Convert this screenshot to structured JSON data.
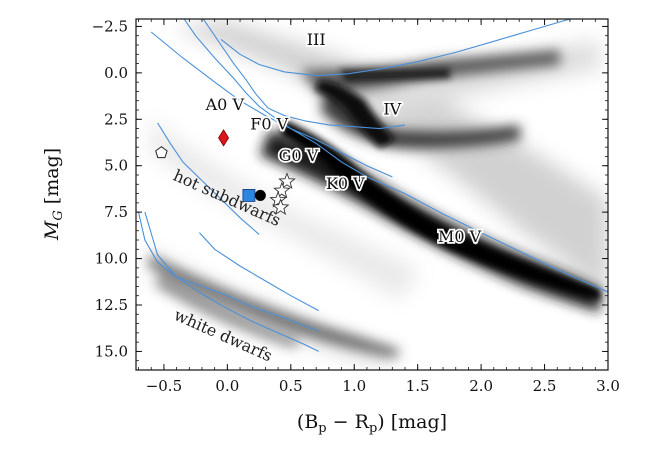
{
  "chart_data": {
    "type": "scatter",
    "title": "",
    "xlabel_parts": {
      "open": "(B",
      "sub1": "p",
      "minus": " − R",
      "sub2": "p",
      "close": ") [mag]"
    },
    "ylabel_parts": {
      "main": "M",
      "sub": "G",
      "unit": " [mag]"
    },
    "xlim": [
      -0.72,
      3.0
    ],
    "ylim": [
      16.0,
      -2.9
    ],
    "y_inverted": true,
    "grid": false,
    "x_ticks": [
      "−0.5",
      "0.0",
      "0.5",
      "1.0",
      "1.5",
      "2.0",
      "2.5",
      "3.0"
    ],
    "x_tick_values": [
      -0.5,
      0.0,
      0.5,
      1.0,
      1.5,
      2.0,
      2.5,
      3.0
    ],
    "y_ticks": [
      "−2.5",
      "0.0",
      "2.5",
      "5.0",
      "7.5",
      "10.0",
      "12.5",
      "15.0"
    ],
    "y_tick_values": [
      -2.5,
      0.0,
      2.5,
      5.0,
      7.5,
      10.0,
      12.5,
      15.0
    ],
    "background": "grayscale density of Gaia stars",
    "region_labels": [
      {
        "text": "hot subdwarfs",
        "x": -0.02,
        "y": 7.0,
        "angle": 24
      },
      {
        "text": "white dwarfs",
        "x": -0.05,
        "y": 14.4,
        "angle": 24
      }
    ],
    "sequence_labels": [
      {
        "text": "III",
        "x": 0.7,
        "y": -1.5
      },
      {
        "text": "IV",
        "x": 1.3,
        "y": 2.25
      },
      {
        "text": "A0 V",
        "x": -0.02,
        "y": 2.0
      },
      {
        "text": "F0 V",
        "x": 0.33,
        "y": 3.05
      },
      {
        "text": "G0 V",
        "x": 0.56,
        "y": 4.75
      },
      {
        "text": "K0 V",
        "x": 0.93,
        "y": 6.25
      },
      {
        "text": "M0 V",
        "x": 1.83,
        "y": 9.1
      }
    ],
    "markers": [
      {
        "name": "red diamond",
        "shape": "diamond",
        "x": -0.03,
        "y": 3.5,
        "color": "#e0141c"
      },
      {
        "name": "white pentagon",
        "shape": "pentagon",
        "x": -0.52,
        "y": 4.3,
        "color": "#ffffff"
      },
      {
        "name": "blue square",
        "shape": "square",
        "x": 0.17,
        "y": 6.6,
        "color": "#2a86e0"
      },
      {
        "name": "black circle",
        "shape": "circle",
        "x": 0.26,
        "y": 6.6,
        "color": "#000000"
      },
      {
        "name": "star 1",
        "shape": "star",
        "x": 0.47,
        "y": 5.85,
        "color": "#ffffff"
      },
      {
        "name": "star 2",
        "shape": "star",
        "x": 0.43,
        "y": 6.35,
        "color": "#ffffff"
      },
      {
        "name": "star 3",
        "shape": "star",
        "x": 0.4,
        "y": 6.85,
        "color": "#ffffff"
      },
      {
        "name": "star 4",
        "shape": "star",
        "x": 0.42,
        "y": 7.25,
        "color": "#ffffff"
      }
    ],
    "series": [
      {
        "id": "track-a",
        "color": "#4a90d9",
        "x": [
          -0.2,
          -0.05,
          0.05,
          0.15,
          0.22,
          0.32,
          0.45,
          0.62,
          0.8,
          1.0,
          1.2,
          1.4
        ],
        "y": [
          -3.0,
          -1.5,
          -0.5,
          0.4,
          1.1,
          1.9,
          2.3,
          2.6,
          2.8,
          2.9,
          3.0,
          2.8
        ]
      },
      {
        "id": "track-b",
        "color": "#4a90d9",
        "x": [
          -0.35,
          -0.25,
          -0.1,
          0.05,
          0.15,
          0.25,
          0.35,
          0.5,
          0.7,
          0.9,
          1.1,
          1.3
        ],
        "y": [
          -3.0,
          -2.0,
          -0.8,
          0.3,
          1.1,
          1.8,
          2.3,
          3.0,
          3.6,
          4.3,
          5.0,
          5.6
        ]
      },
      {
        "id": "giant-branch",
        "color": "#4a90d9",
        "x": [
          -0.05,
          0.1,
          0.25,
          0.45,
          0.7,
          0.95,
          1.2,
          1.5,
          1.8,
          2.1,
          2.4,
          2.7
        ],
        "y": [
          -1.8,
          -1.0,
          -0.45,
          -0.05,
          0.15,
          0.05,
          -0.2,
          -0.6,
          -1.1,
          -1.7,
          -2.3,
          -2.9
        ]
      },
      {
        "id": "main-sequence",
        "color": "#4a90d9",
        "x": [
          -0.6,
          -0.35,
          -0.1,
          0.1,
          0.3,
          0.5,
          0.7,
          0.9,
          1.1,
          1.4,
          1.7,
          2.0,
          2.3,
          2.6,
          2.8,
          3.0
        ],
        "y": [
          -2.2,
          -0.8,
          0.5,
          1.5,
          2.3,
          3.0,
          3.8,
          4.8,
          5.6,
          6.5,
          7.6,
          8.6,
          9.6,
          10.6,
          11.2,
          11.8
        ]
      },
      {
        "id": "hot-subdwarf-track",
        "color": "#4a90d9",
        "x": [
          -0.55,
          -0.45,
          -0.35,
          -0.2,
          -0.05,
          0.1,
          0.25
        ],
        "y": [
          2.7,
          3.8,
          4.8,
          5.8,
          6.8,
          7.8,
          8.7
        ]
      },
      {
        "id": "wd-track-1",
        "color": "#4a90d9",
        "x": [
          -0.65,
          -0.55,
          -0.4,
          -0.2,
          0.0,
          0.2,
          0.4,
          0.6,
          0.72
        ],
        "y": [
          7.5,
          9.8,
          11.0,
          11.9,
          12.7,
          13.4,
          14.0,
          14.6,
          15.0
        ]
      },
      {
        "id": "wd-track-2",
        "color": "#4a90d9",
        "x": [
          -0.7,
          -0.65,
          -0.55,
          -0.4,
          -0.2,
          0.0,
          0.2,
          0.45,
          0.72
        ],
        "y": [
          7.5,
          9.0,
          10.2,
          11.0,
          11.5,
          12.0,
          12.6,
          13.2,
          13.9
        ]
      },
      {
        "id": "wd-track-3",
        "color": "#4a90d9",
        "x": [
          -0.22,
          -0.1,
          0.1,
          0.3,
          0.5,
          0.72
        ],
        "y": [
          8.6,
          9.5,
          10.4,
          11.2,
          12.0,
          12.8
        ]
      }
    ]
  }
}
